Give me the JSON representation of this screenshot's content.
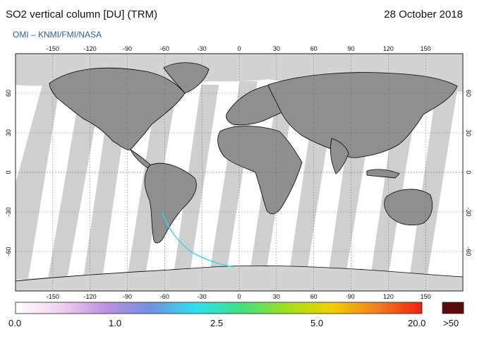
{
  "header": {
    "title": "SO2 vertical column [DU] (TRM)",
    "date": "28 October 2018",
    "credit": "OMI  –  KNMI/FMI/NASA"
  },
  "map": {
    "lon_ticks": [
      "-150",
      "-120",
      "-90",
      "-60",
      "-30",
      "0",
      "30",
      "60",
      "90",
      "120",
      "150"
    ],
    "lat_ticks": [
      "60",
      "30",
      "0",
      "-30",
      "-60"
    ]
  },
  "colorbar": {
    "labels": [
      "0.0",
      "1.0",
      "2.5",
      "5.0",
      "20.0"
    ],
    "overflow_label": ">50",
    "colors": [
      "#ffffff",
      "#f0d0f0",
      "#c090e0",
      "#7090e0",
      "#30e0f0",
      "#40e080",
      "#a0e020",
      "#f0d000",
      "#f08020",
      "#f02010"
    ],
    "overflow_color": "#5a0a0a"
  },
  "colors": {
    "land": "#8f8f8f",
    "polar_fill": "#d3d3d3",
    "swath": "#cfcfcf",
    "ocean": "#ffffff"
  }
}
